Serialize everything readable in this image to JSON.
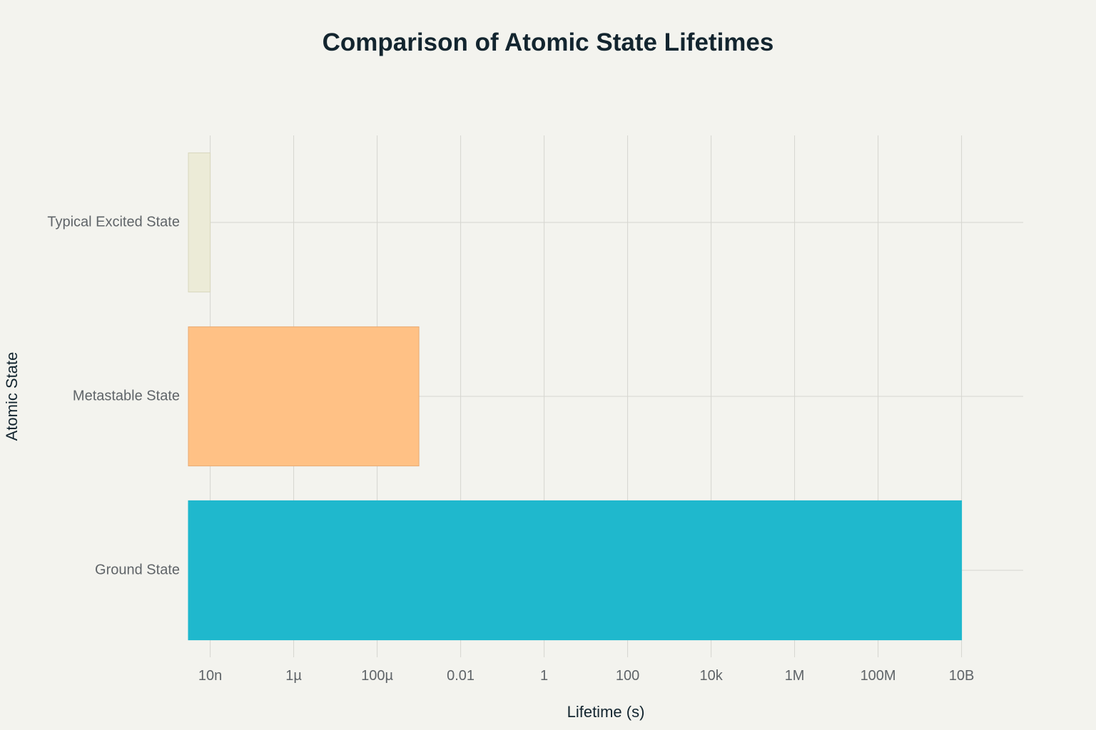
{
  "chart_data": {
    "type": "bar",
    "orientation": "horizontal",
    "title": "Comparison of Atomic State Lifetimes",
    "xlabel": "Lifetime (s)",
    "ylabel": "Atomic State",
    "x_scale": "log",
    "x_ticks": [
      1e-08,
      1e-06,
      0.0001,
      0.01,
      1,
      100,
      10000,
      1000000,
      100000000,
      10000000000
    ],
    "x_tick_labels": [
      "10n",
      "1µ",
      "100µ",
      "0.01",
      "1",
      "100",
      "10k",
      "1M",
      "100M",
      "10B"
    ],
    "xlim": [
      3e-09,
      300000000000.0
    ],
    "grid": true,
    "categories": [
      "Typical Excited State",
      "Metastable State",
      "Ground State"
    ],
    "values": [
      1e-08,
      0.001,
      10000000000
    ],
    "colors": [
      "#ecebd7",
      "#ffc185",
      "#1fb8cd"
    ],
    "border_colors": [
      "#d9d7bd",
      "#e8aa73",
      "#1fb8cd"
    ]
  }
}
